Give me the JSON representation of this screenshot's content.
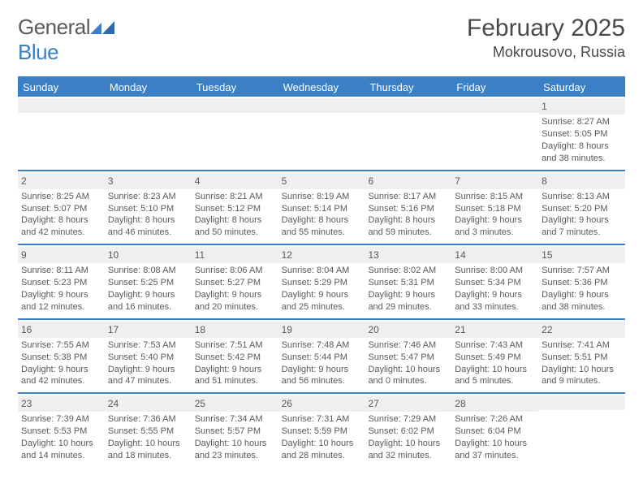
{
  "logo": {
    "general": "General",
    "blue": "Blue"
  },
  "title": "February 2025",
  "location": "Mokrousovo, Russia",
  "colors": {
    "accent": "#3b7fc4",
    "header_bg": "#3b7fc4",
    "daynum_bg": "#efefef",
    "text": "#4a4a4a"
  },
  "day_headers": [
    "Sunday",
    "Monday",
    "Tuesday",
    "Wednesday",
    "Thursday",
    "Friday",
    "Saturday"
  ],
  "weeks": [
    [
      null,
      null,
      null,
      null,
      null,
      null,
      {
        "n": "1",
        "sr": "Sunrise: 8:27 AM",
        "ss": "Sunset: 5:05 PM",
        "dl": "Daylight: 8 hours and 38 minutes."
      }
    ],
    [
      {
        "n": "2",
        "sr": "Sunrise: 8:25 AM",
        "ss": "Sunset: 5:07 PM",
        "dl": "Daylight: 8 hours and 42 minutes."
      },
      {
        "n": "3",
        "sr": "Sunrise: 8:23 AM",
        "ss": "Sunset: 5:10 PM",
        "dl": "Daylight: 8 hours and 46 minutes."
      },
      {
        "n": "4",
        "sr": "Sunrise: 8:21 AM",
        "ss": "Sunset: 5:12 PM",
        "dl": "Daylight: 8 hours and 50 minutes."
      },
      {
        "n": "5",
        "sr": "Sunrise: 8:19 AM",
        "ss": "Sunset: 5:14 PM",
        "dl": "Daylight: 8 hours and 55 minutes."
      },
      {
        "n": "6",
        "sr": "Sunrise: 8:17 AM",
        "ss": "Sunset: 5:16 PM",
        "dl": "Daylight: 8 hours and 59 minutes."
      },
      {
        "n": "7",
        "sr": "Sunrise: 8:15 AM",
        "ss": "Sunset: 5:18 PM",
        "dl": "Daylight: 9 hours and 3 minutes."
      },
      {
        "n": "8",
        "sr": "Sunrise: 8:13 AM",
        "ss": "Sunset: 5:20 PM",
        "dl": "Daylight: 9 hours and 7 minutes."
      }
    ],
    [
      {
        "n": "9",
        "sr": "Sunrise: 8:11 AM",
        "ss": "Sunset: 5:23 PM",
        "dl": "Daylight: 9 hours and 12 minutes."
      },
      {
        "n": "10",
        "sr": "Sunrise: 8:08 AM",
        "ss": "Sunset: 5:25 PM",
        "dl": "Daylight: 9 hours and 16 minutes."
      },
      {
        "n": "11",
        "sr": "Sunrise: 8:06 AM",
        "ss": "Sunset: 5:27 PM",
        "dl": "Daylight: 9 hours and 20 minutes."
      },
      {
        "n": "12",
        "sr": "Sunrise: 8:04 AM",
        "ss": "Sunset: 5:29 PM",
        "dl": "Daylight: 9 hours and 25 minutes."
      },
      {
        "n": "13",
        "sr": "Sunrise: 8:02 AM",
        "ss": "Sunset: 5:31 PM",
        "dl": "Daylight: 9 hours and 29 minutes."
      },
      {
        "n": "14",
        "sr": "Sunrise: 8:00 AM",
        "ss": "Sunset: 5:34 PM",
        "dl": "Daylight: 9 hours and 33 minutes."
      },
      {
        "n": "15",
        "sr": "Sunrise: 7:57 AM",
        "ss": "Sunset: 5:36 PM",
        "dl": "Daylight: 9 hours and 38 minutes."
      }
    ],
    [
      {
        "n": "16",
        "sr": "Sunrise: 7:55 AM",
        "ss": "Sunset: 5:38 PM",
        "dl": "Daylight: 9 hours and 42 minutes."
      },
      {
        "n": "17",
        "sr": "Sunrise: 7:53 AM",
        "ss": "Sunset: 5:40 PM",
        "dl": "Daylight: 9 hours and 47 minutes."
      },
      {
        "n": "18",
        "sr": "Sunrise: 7:51 AM",
        "ss": "Sunset: 5:42 PM",
        "dl": "Daylight: 9 hours and 51 minutes."
      },
      {
        "n": "19",
        "sr": "Sunrise: 7:48 AM",
        "ss": "Sunset: 5:44 PM",
        "dl": "Daylight: 9 hours and 56 minutes."
      },
      {
        "n": "20",
        "sr": "Sunrise: 7:46 AM",
        "ss": "Sunset: 5:47 PM",
        "dl": "Daylight: 10 hours and 0 minutes."
      },
      {
        "n": "21",
        "sr": "Sunrise: 7:43 AM",
        "ss": "Sunset: 5:49 PM",
        "dl": "Daylight: 10 hours and 5 minutes."
      },
      {
        "n": "22",
        "sr": "Sunrise: 7:41 AM",
        "ss": "Sunset: 5:51 PM",
        "dl": "Daylight: 10 hours and 9 minutes."
      }
    ],
    [
      {
        "n": "23",
        "sr": "Sunrise: 7:39 AM",
        "ss": "Sunset: 5:53 PM",
        "dl": "Daylight: 10 hours and 14 minutes."
      },
      {
        "n": "24",
        "sr": "Sunrise: 7:36 AM",
        "ss": "Sunset: 5:55 PM",
        "dl": "Daylight: 10 hours and 18 minutes."
      },
      {
        "n": "25",
        "sr": "Sunrise: 7:34 AM",
        "ss": "Sunset: 5:57 PM",
        "dl": "Daylight: 10 hours and 23 minutes."
      },
      {
        "n": "26",
        "sr": "Sunrise: 7:31 AM",
        "ss": "Sunset: 5:59 PM",
        "dl": "Daylight: 10 hours and 28 minutes."
      },
      {
        "n": "27",
        "sr": "Sunrise: 7:29 AM",
        "ss": "Sunset: 6:02 PM",
        "dl": "Daylight: 10 hours and 32 minutes."
      },
      {
        "n": "28",
        "sr": "Sunrise: 7:26 AM",
        "ss": "Sunset: 6:04 PM",
        "dl": "Daylight: 10 hours and 37 minutes."
      },
      null
    ]
  ]
}
